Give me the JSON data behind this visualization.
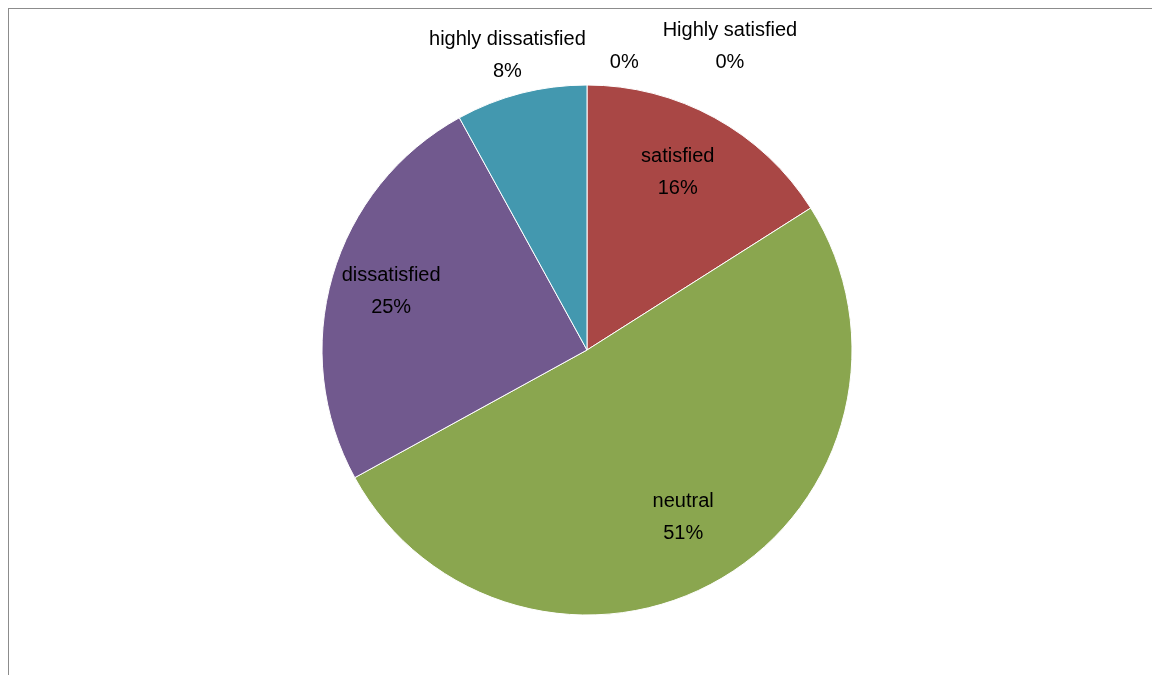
{
  "chart_data": {
    "type": "pie",
    "categories": [
      "Highly satisfied",
      "satisfied",
      "neutral",
      "dissatisfied",
      "highly dissatisfied",
      null
    ],
    "values": [
      0,
      16,
      51,
      25,
      8,
      0
    ],
    "colors": [
      "#4a7ebb",
      "#a94745",
      "#8aa64f",
      "#71598e",
      "#4398af",
      "#e8893c"
    ],
    "value_labels": [
      "0%",
      "16%",
      "51%",
      "25%",
      "8%",
      "0%"
    ]
  }
}
